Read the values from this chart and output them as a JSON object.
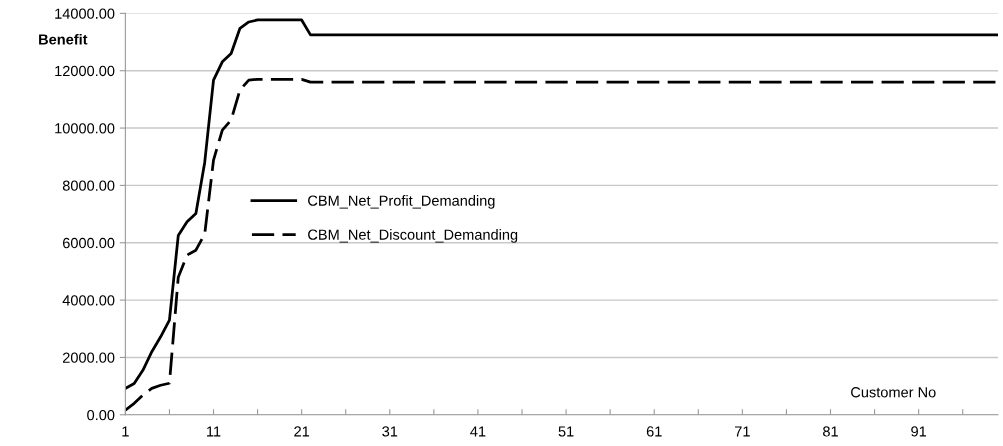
{
  "chart_data": {
    "type": "line",
    "xlabel": "Customer No",
    "ylabel": "Benefit",
    "x": [
      1,
      2,
      3,
      4,
      5,
      6,
      7,
      8,
      9,
      10,
      11,
      12,
      13,
      14,
      15,
      16,
      17,
      18,
      19,
      20,
      21,
      22,
      23,
      24,
      25,
      26,
      27,
      28,
      29,
      30,
      31,
      32,
      33,
      34,
      35,
      36,
      37,
      38,
      39,
      40,
      41,
      42,
      43,
      44,
      45,
      46,
      47,
      48,
      49,
      50,
      51,
      52,
      53,
      54,
      55,
      56,
      57,
      58,
      59,
      60,
      61,
      62,
      63,
      64,
      65,
      66,
      67,
      68,
      69,
      70,
      71,
      72,
      73,
      74,
      75,
      76,
      77,
      78,
      79,
      80,
      81,
      82,
      83,
      84,
      85,
      86,
      87,
      88,
      89,
      90,
      91,
      92,
      93,
      94,
      95,
      96,
      97,
      98,
      99,
      100
    ],
    "series": [
      {
        "name": "CBM_Net_Profit_Demanding",
        "color": "#000000",
        "line_style": "solid",
        "values": [
          920,
          1090,
          1560,
          2200,
          2720,
          3300,
          6250,
          6730,
          7020,
          8800,
          11670,
          12310,
          12600,
          13480,
          13700,
          13770,
          13770,
          13770,
          13770,
          13770,
          13770,
          13250,
          13250,
          13250,
          13250,
          13250,
          13250,
          13250,
          13250,
          13250,
          13250,
          13250,
          13250,
          13250,
          13250,
          13250,
          13250,
          13250,
          13250,
          13250,
          13250,
          13250,
          13250,
          13250,
          13250,
          13250,
          13250,
          13250,
          13250,
          13250,
          13250,
          13250,
          13250,
          13250,
          13250,
          13250,
          13250,
          13250,
          13250,
          13250,
          13250,
          13250,
          13250,
          13250,
          13250,
          13250,
          13250,
          13250,
          13250,
          13250,
          13250,
          13250,
          13250,
          13250,
          13250,
          13250,
          13250,
          13250,
          13250,
          13250,
          13250,
          13250,
          13250,
          13250,
          13250,
          13250,
          13250,
          13250,
          13250,
          13250,
          13250,
          13250,
          13250,
          13250,
          13250,
          13250,
          13250,
          13250,
          13250,
          13250
        ]
      },
      {
        "name": "CBM_Net_Discount_Demanding",
        "color": "#000000",
        "line_style": "dashed",
        "values": [
          160,
          400,
          690,
          920,
          1030,
          1100,
          4800,
          5570,
          5740,
          6300,
          8880,
          9930,
          10280,
          11330,
          11670,
          11700,
          11700,
          11700,
          11700,
          11700,
          11700,
          11600,
          11600,
          11600,
          11600,
          11600,
          11600,
          11600,
          11600,
          11600,
          11600,
          11600,
          11600,
          11600,
          11600,
          11600,
          11600,
          11600,
          11600,
          11600,
          11600,
          11600,
          11600,
          11600,
          11600,
          11600,
          11600,
          11600,
          11600,
          11600,
          11600,
          11600,
          11600,
          11600,
          11600,
          11600,
          11600,
          11600,
          11600,
          11600,
          11600,
          11600,
          11600,
          11600,
          11600,
          11600,
          11600,
          11600,
          11600,
          11600,
          11600,
          11600,
          11600,
          11600,
          11600,
          11600,
          11600,
          11600,
          11600,
          11600,
          11600,
          11600,
          11600,
          11600,
          11600,
          11600,
          11600,
          11600,
          11600,
          11600,
          11600,
          11600,
          11600,
          11600,
          11600,
          11600,
          11600,
          11600,
          11600,
          11600
        ]
      }
    ],
    "xlim": [
      1,
      100
    ],
    "xticks": [
      1,
      {
        "value": 6,
        "label": null
      },
      11,
      {
        "value": 16,
        "label": null
      },
      21,
      {
        "value": 26,
        "label": null
      },
      31,
      {
        "value": 36,
        "label": null
      },
      41,
      {
        "value": 46,
        "label": null
      },
      51,
      {
        "value": 56,
        "label": null
      },
      61,
      {
        "value": 66,
        "label": null
      },
      71,
      {
        "value": 76,
        "label": null
      },
      81,
      {
        "value": 86,
        "label": null
      },
      91,
      {
        "value": 96,
        "label": null
      }
    ],
    "ylim": [
      0,
      14000
    ],
    "yticks": [
      {
        "value": 0,
        "label": "0.00"
      },
      {
        "value": 2000,
        "label": "2000.00"
      },
      {
        "value": 4000,
        "label": "4000.00"
      },
      {
        "value": 6000,
        "label": "6000.00"
      },
      {
        "value": 8000,
        "label": "8000.00"
      },
      {
        "value": 10000,
        "label": "10000.00"
      },
      {
        "value": 12000,
        "label": "12000.00"
      },
      {
        "value": 14000,
        "label": "14000.00"
      }
    ],
    "grid": "y",
    "legend": "left",
    "marker": "none"
  }
}
